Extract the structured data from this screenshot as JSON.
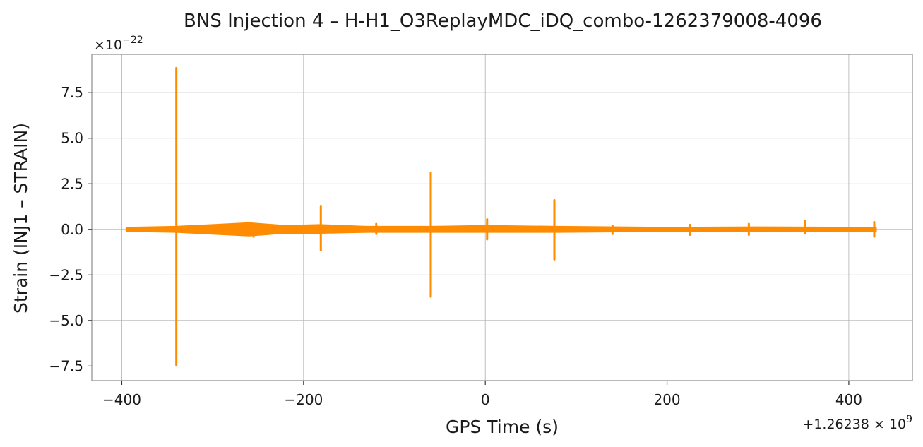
{
  "chart_data": {
    "type": "line",
    "title": "BNS Injection 4 – H-H1_O3ReplayMDC_iDQ_combo-1262379008-4096",
    "xlabel": "GPS Time (s)",
    "ylabel": "Strain (INJ1 – STRAIN)",
    "y_scale_label": "×10",
    "y_scale_exp": "−22",
    "x_offset_label": "+1.26238 × 10",
    "x_offset_exp": "9",
    "xlim": [
      -433,
      470
    ],
    "ylim": [
      -8.3,
      9.6
    ],
    "x_ticks": [
      -400,
      -200,
      0,
      200,
      400
    ],
    "x_tick_labels": [
      "−400",
      "−200",
      "0",
      "200",
      "400"
    ],
    "y_ticks": [
      7.5,
      5.0,
      2.5,
      0.0,
      -2.5,
      -5.0,
      -7.5
    ],
    "y_tick_labels": [
      "7.5",
      "5.0",
      "2.5",
      "0.0",
      "−2.5",
      "−5.0",
      "−7.5"
    ],
    "grid": true,
    "series_color": "#ff8c00",
    "x_range": [
      -395,
      430
    ],
    "baseline_band": [
      [
        -395,
        0.1,
        -0.1
      ],
      [
        -340,
        0.15,
        -0.15
      ],
      [
        -300,
        0.25,
        -0.25
      ],
      [
        -260,
        0.35,
        -0.35
      ],
      [
        -220,
        0.2,
        -0.2
      ],
      [
        -182,
        0.25,
        -0.2
      ],
      [
        -130,
        0.15,
        -0.15
      ],
      [
        -60,
        0.15,
        -0.15
      ],
      [
        0,
        0.2,
        -0.15
      ],
      [
        80,
        0.15,
        -0.15
      ],
      [
        200,
        0.1,
        -0.1
      ],
      [
        300,
        0.12,
        -0.12
      ],
      [
        430,
        0.1,
        -0.1
      ]
    ],
    "spikes": [
      {
        "x": -340,
        "max": 8.85,
        "min": -7.45
      },
      {
        "x": -181,
        "max": 1.25,
        "min": -1.15
      },
      {
        "x": -60,
        "max": 3.1,
        "min": -3.7
      },
      {
        "x": 2,
        "max": 0.55,
        "min": -0.55
      },
      {
        "x": 76,
        "max": 1.6,
        "min": -1.65
      },
      {
        "x": -120,
        "max": 0.3,
        "min": -0.25
      },
      {
        "x": 140,
        "max": 0.2,
        "min": -0.25
      },
      {
        "x": 225,
        "max": 0.25,
        "min": -0.3
      },
      {
        "x": 290,
        "max": 0.3,
        "min": -0.3
      },
      {
        "x": 352,
        "max": 0.45,
        "min": -0.2
      },
      {
        "x": 428,
        "max": 0.4,
        "min": -0.4
      },
      {
        "x": -255,
        "max": 0.2,
        "min": -0.4
      }
    ]
  }
}
